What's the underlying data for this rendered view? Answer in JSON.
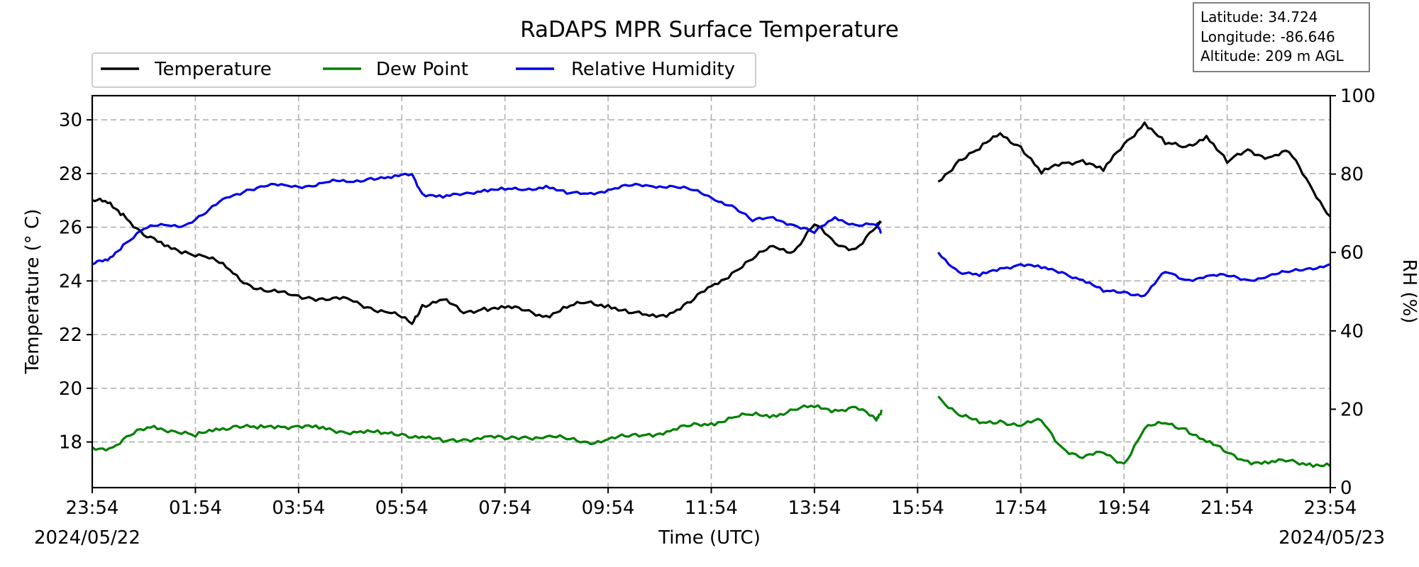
{
  "chart_data": {
    "type": "line",
    "title": "RaDAPS MPR Surface Temperature",
    "xlabel": "Time (UTC)",
    "ylabel_left": "Temperature ($^\\circ$C)",
    "ylabel_left_display": "Temperature (° C)",
    "ylabel_right": "RH (%)",
    "x_tick_labels": [
      "23:54",
      "01:54",
      "03:54",
      "05:54",
      "07:54",
      "09:54",
      "11:54",
      "13:54",
      "15:54",
      "17:54",
      "19:54",
      "21:54",
      "23:54"
    ],
    "x_start_date": "2024/05/22",
    "x_end_date": "2024/05/23",
    "x_range_hours": [
      0,
      24
    ],
    "ylim_left": [
      16.3,
      30.9
    ],
    "yticks_left": [
      "18",
      "20",
      "22",
      "24",
      "26",
      "28",
      "30"
    ],
    "ylim_right": [
      0,
      100
    ],
    "yticks_right": [
      "0",
      "20",
      "40",
      "60",
      "80",
      "100"
    ],
    "grid": true,
    "legend_position": "top-left, above plot",
    "series": [
      {
        "name": "Temperature",
        "axis": "left",
        "color": "#000000",
        "x_hours": [
          0,
          0.3,
          0.6,
          1.0,
          1.4,
          1.8,
          2.2,
          2.6,
          3.0,
          3.4,
          3.8,
          4.2,
          4.6,
          5.0,
          5.4,
          5.8,
          6.2,
          6.4,
          6.8,
          7.2,
          7.6,
          8.0,
          8.4,
          8.8,
          9.2,
          9.6,
          10.0,
          10.4,
          10.8,
          11.2,
          11.6,
          12.0,
          12.4,
          12.8,
          13.2,
          13.6,
          14.0,
          14.4,
          14.8,
          15.2,
          15.3,
          16.4,
          16.8,
          17.2,
          17.6,
          18.0,
          18.4,
          18.8,
          19.2,
          19.6,
          20.0,
          20.4,
          20.8,
          21.2,
          21.6,
          22.0,
          22.4,
          22.8,
          23.2,
          23.6,
          24.0
        ],
        "values": [
          27.0,
          26.9,
          26.5,
          25.7,
          25.3,
          25.1,
          24.9,
          24.5,
          23.9,
          23.6,
          23.5,
          23.4,
          23.3,
          23.3,
          23.0,
          22.8,
          22.4,
          23.1,
          23.3,
          22.8,
          23.0,
          23.0,
          22.9,
          22.7,
          23.0,
          23.2,
          23.1,
          22.8,
          22.7,
          22.8,
          23.2,
          23.8,
          24.3,
          24.8,
          25.3,
          25.1,
          26.1,
          25.4,
          25.2,
          26.0,
          26.2,
          27.7,
          28.5,
          28.9,
          29.5,
          29.0,
          28.0,
          28.4,
          28.5,
          28.1,
          29.1,
          29.9,
          29.1,
          29.0,
          29.4,
          28.4,
          28.9,
          28.6,
          28.8,
          27.6,
          26.4
        ],
        "gaps_after_hours": [
          15.3
        ]
      },
      {
        "name": "Dew Point",
        "axis": "left",
        "color": "#008000",
        "x_hours": [
          0,
          0.4,
          0.8,
          1.2,
          1.6,
          2.0,
          2.4,
          2.8,
          3.2,
          3.6,
          4.0,
          4.4,
          4.8,
          5.2,
          5.6,
          6.0,
          6.4,
          6.8,
          7.2,
          7.6,
          8.0,
          8.4,
          8.8,
          9.2,
          9.6,
          10.0,
          10.4,
          10.8,
          11.2,
          11.6,
          12.0,
          12.4,
          12.8,
          13.2,
          13.6,
          14.0,
          14.4,
          14.8,
          15.2,
          15.3,
          16.4,
          16.8,
          17.2,
          17.6,
          18.0,
          18.4,
          18.8,
          19.2,
          19.6,
          20.0,
          20.4,
          20.8,
          21.2,
          21.6,
          22.0,
          22.4,
          22.8,
          23.2,
          23.6,
          24.0
        ],
        "values": [
          17.8,
          17.8,
          18.3,
          18.6,
          18.4,
          18.2,
          18.5,
          18.6,
          18.5,
          18.6,
          18.6,
          18.5,
          18.4,
          18.4,
          18.3,
          18.3,
          18.2,
          18.0,
          18.1,
          18.2,
          18.1,
          18.2,
          18.2,
          18.1,
          18.0,
          18.1,
          18.2,
          18.3,
          18.4,
          18.6,
          18.7,
          18.9,
          19.0,
          19.0,
          19.2,
          19.3,
          19.2,
          19.3,
          18.8,
          19.2,
          19.7,
          19.0,
          18.7,
          18.8,
          18.6,
          18.8,
          17.8,
          17.4,
          17.6,
          17.2,
          18.5,
          18.7,
          18.5,
          18.0,
          17.6,
          17.3,
          17.2,
          17.3,
          17.2,
          17.1
        ],
        "gaps_after_hours": [
          15.3
        ]
      },
      {
        "name": "Relative Humidity",
        "axis": "right",
        "color": "#0000e8",
        "x_hours": [
          0,
          0.3,
          0.6,
          1.0,
          1.4,
          1.8,
          2.2,
          2.6,
          3.0,
          3.4,
          3.8,
          4.2,
          4.6,
          5.0,
          5.4,
          5.8,
          6.2,
          6.4,
          6.8,
          7.2,
          7.6,
          8.0,
          8.4,
          8.8,
          9.2,
          9.6,
          10.0,
          10.4,
          10.8,
          11.2,
          11.6,
          12.0,
          12.4,
          12.8,
          13.2,
          13.6,
          14.0,
          14.4,
          14.8,
          15.2,
          15.3,
          16.4,
          16.8,
          17.2,
          17.6,
          18.0,
          18.4,
          18.8,
          19.2,
          19.6,
          20.0,
          20.4,
          20.8,
          21.2,
          21.6,
          22.0,
          22.4,
          22.8,
          23.2,
          23.6,
          24.0
        ],
        "values": [
          57,
          58,
          62,
          66,
          67,
          67,
          70,
          74,
          76,
          77,
          77,
          77,
          78,
          78,
          79,
          79,
          80,
          75,
          74,
          75,
          76,
          76,
          76,
          77,
          75,
          75,
          76,
          77,
          77,
          77,
          76,
          74,
          72,
          68,
          69,
          67,
          65,
          69,
          67,
          67,
          65,
          60,
          55,
          54,
          56,
          57,
          56,
          55,
          53,
          50,
          50,
          49,
          55,
          53,
          54,
          54,
          53,
          54,
          55,
          56,
          57
        ],
        "gaps_after_hours": [
          15.3
        ]
      }
    ]
  },
  "info_box": {
    "latitude": "Latitude: 34.724",
    "longitude": "Longitude: -86.646",
    "altitude": "Altitude: 209 m AGL"
  }
}
